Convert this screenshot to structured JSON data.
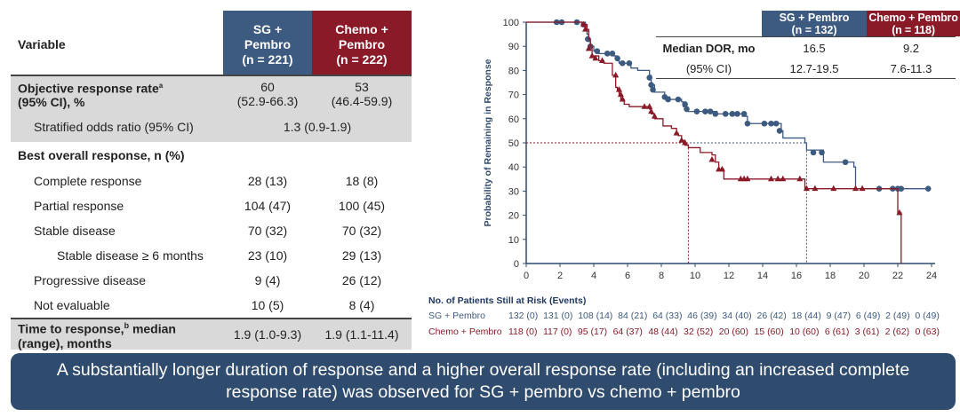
{
  "table": {
    "header": {
      "variable": "Variable",
      "col1": [
        "SG +",
        "Pembro",
        "(n = 221)"
      ],
      "col2": [
        "Chemo +",
        "Pembro",
        "(n = 222)"
      ]
    },
    "rows": [
      {
        "label": "Objective response rate",
        "sup": "a",
        "label2": "(95% CI), %",
        "v1": "60",
        "v1b": "(52.9-66.3)",
        "v2": "53",
        "v2b": "(46.4-59.9)"
      },
      {
        "label": "Stratified odds ratio (95% CI)",
        "merged": "1.3 (0.9-1.9)"
      },
      {
        "label": "Best overall response, n (%)"
      },
      {
        "label": "Complete response",
        "v1": "28 (13)",
        "v2": "18 (8)"
      },
      {
        "label": "Partial response",
        "v1": "104 (47)",
        "v2": "100 (45)"
      },
      {
        "label": "Stable disease",
        "v1": "70 (32)",
        "v2": "70 (32)"
      },
      {
        "label": "Stable disease ≥ 6 months",
        "v1": "23 (10)",
        "v2": "29 (13)"
      },
      {
        "label": "Progressive disease",
        "v1": "9 (4)",
        "v2": "26 (12)"
      },
      {
        "label": "Not evaluable",
        "v1": "10 (5)",
        "v2": "8 (4)"
      },
      {
        "label": "Time to response,",
        "sup": "b",
        "label_tail": " median",
        "label2": "(range), months",
        "v1": "1.9 (1.0-9.3)",
        "v2": "1.9 (1.1-11.4)"
      }
    ]
  },
  "inset": {
    "col1": [
      "SG + Pembro",
      "(n = 132)"
    ],
    "col2": [
      "Chemo + Pembro",
      "(n = 118)"
    ],
    "rows": [
      {
        "label": "Median DOR, mo",
        "v1": "16.5",
        "v2": "9.2"
      },
      {
        "label": "(95% CI)",
        "v1": "12.7-19.5",
        "v2": "7.6-11.3"
      }
    ]
  },
  "risk_table": {
    "title": "No. of Patients Still at Risk (Events)",
    "rows": [
      {
        "label": "SG + Pembro",
        "values": [
          "132 (0)",
          "131 (0)",
          "108 (14)",
          "84 (21)",
          "64 (33)",
          "46 (39)",
          "34 (40)",
          "26 (42)",
          "18 (44)",
          "9 (47)",
          "6 (49)",
          "2 (49)",
          "0 (49)"
        ]
      },
      {
        "label": "Chemo + Pembro",
        "values": [
          "118 (0)",
          "117 (0)",
          "95 (17)",
          "64 (37)",
          "48 (44)",
          "32 (52)",
          "20 (60)",
          "15 (60)",
          "10 (60)",
          "6 (61)",
          "3 (61)",
          "2 (62)",
          "0 (63)"
        ]
      }
    ]
  },
  "banner": "A substantially longer duration of response and a higher overall response rate (including an increased complete response rate) was observed for SG + pembro vs chemo + pembro",
  "colors": {
    "sg": "#3d5a80",
    "chemo": "#8b1a28",
    "axis": "#2f4b6e",
    "banner": "#2f4b6e"
  },
  "chart_data": {
    "type": "line",
    "subtype": "kaplan-meier",
    "ylabel": "Probability of Remaining in Response",
    "xlim": [
      0,
      24
    ],
    "ylim": [
      0,
      100
    ],
    "xticks": [
      0,
      2,
      4,
      6,
      8,
      10,
      12,
      14,
      16,
      18,
      20,
      22,
      24
    ],
    "yticks": [
      0,
      10,
      20,
      30,
      40,
      50,
      60,
      70,
      80,
      90,
      100
    ],
    "series": [
      {
        "name": "SG + Pembro",
        "color": "#3d5a80",
        "marker": "circle",
        "median": 16.5,
        "steps": [
          [
            0,
            100
          ],
          [
            3.5,
            99
          ],
          [
            3.6,
            95
          ],
          [
            3.7,
            92
          ],
          [
            3.8,
            90
          ],
          [
            4,
            88
          ],
          [
            4.3,
            87
          ],
          [
            5.2,
            86
          ],
          [
            5.4,
            84
          ],
          [
            5.5,
            83
          ],
          [
            6.2,
            81
          ],
          [
            6.6,
            80
          ],
          [
            7.3,
            78
          ],
          [
            7.4,
            74
          ],
          [
            7.6,
            71
          ],
          [
            8.2,
            69
          ],
          [
            8.5,
            68
          ],
          [
            9.2,
            67
          ],
          [
            9.3,
            65
          ],
          [
            9.5,
            63
          ],
          [
            11.3,
            62
          ],
          [
            12.8,
            61
          ],
          [
            13.1,
            58
          ],
          [
            15.1,
            55
          ],
          [
            15.2,
            52
          ],
          [
            16.5,
            50
          ],
          [
            16.6,
            47
          ],
          [
            17.6,
            42
          ],
          [
            19.4,
            40
          ],
          [
            19.5,
            31
          ],
          [
            23.8,
            31
          ]
        ],
        "censored": [
          [
            1.8,
            100
          ],
          [
            2.1,
            100
          ],
          [
            3.0,
            100
          ],
          [
            3.4,
            99
          ],
          [
            3.65,
            93
          ],
          [
            3.8,
            90
          ],
          [
            4.2,
            88
          ],
          [
            4.8,
            87
          ],
          [
            5.1,
            87
          ],
          [
            5.4,
            85
          ],
          [
            5.7,
            83
          ],
          [
            6.1,
            83
          ],
          [
            7.3,
            77
          ],
          [
            7.4,
            74
          ],
          [
            7.5,
            72
          ],
          [
            8.2,
            69
          ],
          [
            8.4,
            68
          ],
          [
            9.0,
            68
          ],
          [
            9.4,
            66
          ],
          [
            9.5,
            64
          ],
          [
            10.1,
            63
          ],
          [
            10.6,
            63
          ],
          [
            10.9,
            63
          ],
          [
            11.2,
            62
          ],
          [
            11.8,
            62
          ],
          [
            12.2,
            62
          ],
          [
            12.5,
            62
          ],
          [
            12.9,
            62
          ],
          [
            13.1,
            58
          ],
          [
            14.1,
            58
          ],
          [
            14.5,
            58
          ],
          [
            14.8,
            58
          ],
          [
            15.0,
            55
          ],
          [
            17.0,
            46
          ],
          [
            17.5,
            46
          ],
          [
            18.9,
            42
          ],
          [
            20.9,
            31
          ],
          [
            21.7,
            31
          ],
          [
            22.0,
            31
          ],
          [
            22.2,
            31
          ],
          [
            23.8,
            31
          ]
        ]
      },
      {
        "name": "Chemo + Pembro",
        "color": "#8b1a28",
        "marker": "triangle",
        "median": 9.2,
        "steps": [
          [
            0,
            100
          ],
          [
            3.3,
            99
          ],
          [
            3.6,
            97
          ],
          [
            3.7,
            93
          ],
          [
            3.8,
            90
          ],
          [
            3.9,
            86
          ],
          [
            4.3,
            84
          ],
          [
            4.6,
            83
          ],
          [
            5.1,
            78
          ],
          [
            5.3,
            73
          ],
          [
            5.4,
            72
          ],
          [
            5.5,
            70
          ],
          [
            5.6,
            68
          ],
          [
            5.8,
            66
          ],
          [
            6.1,
            65
          ],
          [
            7.3,
            64
          ],
          [
            7.4,
            62
          ],
          [
            7.6,
            60
          ],
          [
            8.1,
            57
          ],
          [
            8.6,
            56
          ],
          [
            8.9,
            54
          ],
          [
            9.0,
            53
          ],
          [
            9.2,
            51
          ],
          [
            9.4,
            49
          ],
          [
            9.6,
            48
          ],
          [
            10.3,
            46
          ],
          [
            11.0,
            45
          ],
          [
            11.2,
            42
          ],
          [
            11.4,
            39
          ],
          [
            11.7,
            35
          ],
          [
            16.3,
            35
          ],
          [
            16.5,
            31
          ],
          [
            22.0,
            31
          ],
          [
            22.0,
            21
          ],
          [
            22.2,
            21
          ],
          [
            22.2,
            0
          ]
        ],
        "censored": [
          [
            3.4,
            99
          ],
          [
            3.5,
            97
          ],
          [
            3.7,
            89
          ],
          [
            3.9,
            86
          ],
          [
            4.1,
            85
          ],
          [
            4.5,
            84
          ],
          [
            5.3,
            78
          ],
          [
            5.5,
            72
          ],
          [
            5.6,
            70
          ],
          [
            5.7,
            68
          ],
          [
            7.0,
            65
          ],
          [
            7.3,
            65
          ],
          [
            7.4,
            63
          ],
          [
            7.6,
            61
          ],
          [
            8.9,
            54
          ],
          [
            9.2,
            51
          ],
          [
            9.4,
            50
          ],
          [
            11.0,
            43
          ],
          [
            11.4,
            39
          ],
          [
            11.6,
            39
          ],
          [
            12.7,
            35
          ],
          [
            12.9,
            35
          ],
          [
            13.1,
            35
          ],
          [
            14.5,
            35
          ],
          [
            14.9,
            35
          ],
          [
            15.2,
            35
          ],
          [
            16.2,
            35
          ],
          [
            16.6,
            31
          ],
          [
            17.1,
            31
          ],
          [
            18.2,
            31
          ],
          [
            19.5,
            31
          ],
          [
            19.9,
            31
          ],
          [
            22.1,
            21
          ]
        ]
      }
    ]
  }
}
